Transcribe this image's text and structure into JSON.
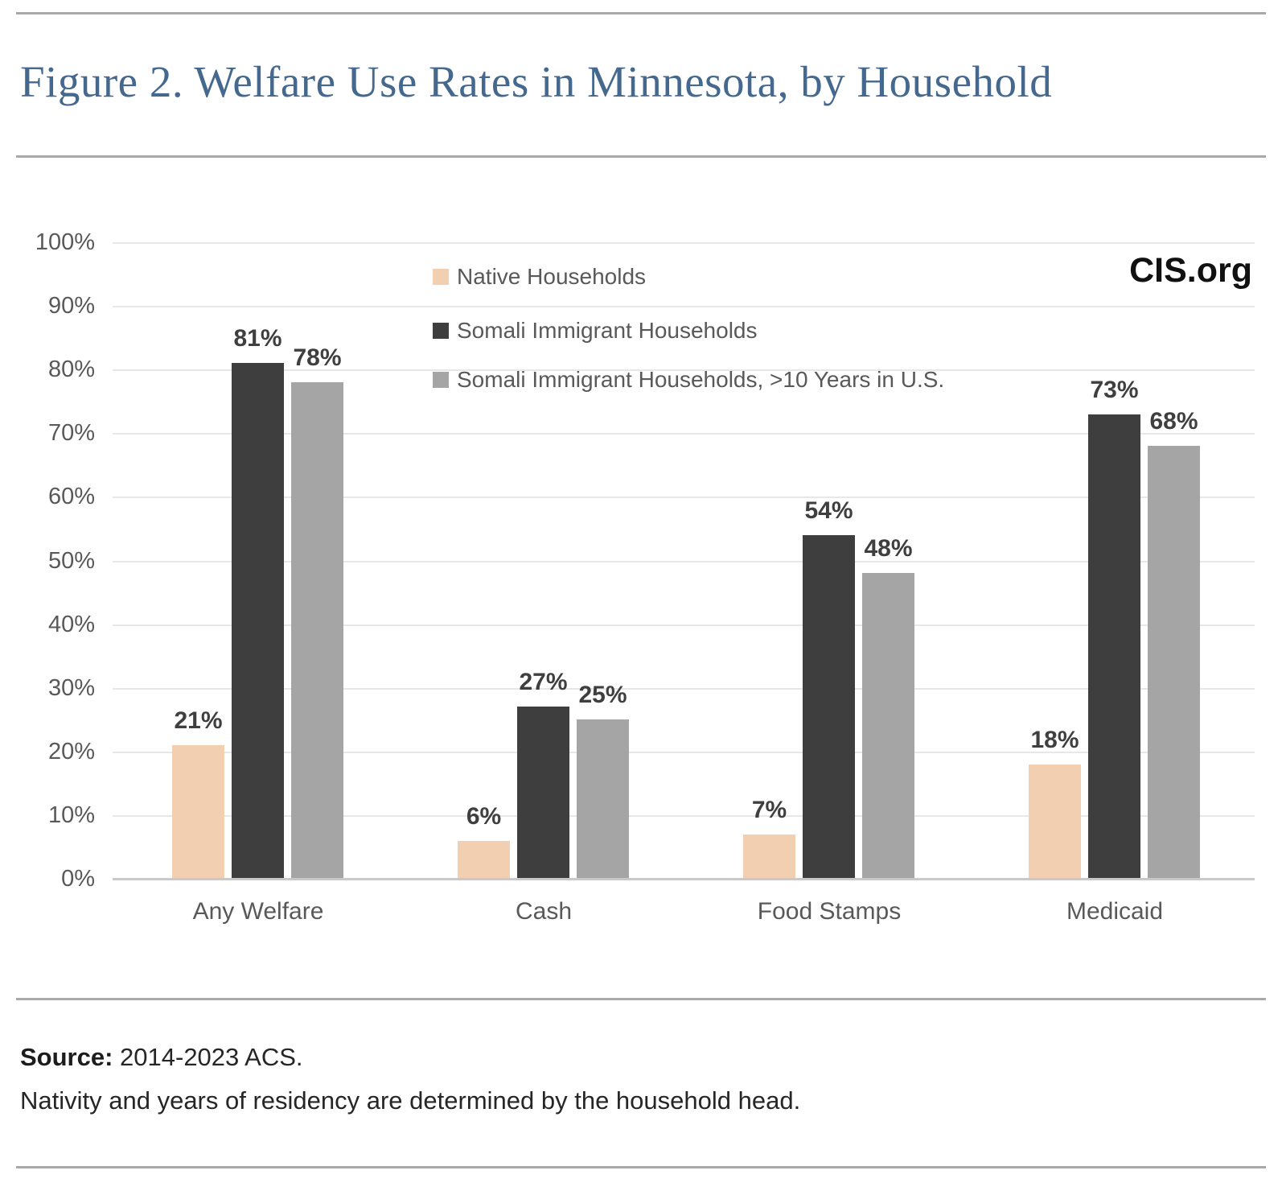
{
  "title": "Figure 2. Welfare Use Rates in Minnesota, by Household",
  "branding": "CIS.org",
  "source": {
    "label": "Source:",
    "text": " 2014-2023 ACS.",
    "note": "Nativity and years of residency are determined by the household head."
  },
  "colors": {
    "title": "#45688e",
    "axis_text": "#595959",
    "value_label": "#3f3f3f",
    "gridline": "#e7e7e7",
    "axis_line": "#c9c9c9",
    "divider": "#a9a9a9",
    "branding": "#111111"
  },
  "chart_data": {
    "type": "bar",
    "categories": [
      "Any Welfare",
      "Cash",
      "Food Stamps",
      "Medicaid"
    ],
    "series": [
      {
        "name": "Native Households",
        "color": "#f2cfb0",
        "values": [
          21,
          6,
          7,
          18
        ]
      },
      {
        "name": "Somali Immigrant Households",
        "color": "#3e3e3e",
        "values": [
          81,
          27,
          54,
          73
        ]
      },
      {
        "name": "Somali Immigrant Households, >10 Years in U.S.",
        "color": "#a5a5a5",
        "values": [
          78,
          25,
          48,
          68
        ]
      }
    ],
    "value_labels": [
      [
        "21%",
        "6%",
        "7%",
        "18%"
      ],
      [
        "81%",
        "27%",
        "54%",
        "73%"
      ],
      [
        "78%",
        "25%",
        "48%",
        "68%"
      ]
    ],
    "y_ticks": [
      "0%",
      "10%",
      "20%",
      "30%",
      "40%",
      "50%",
      "60%",
      "70%",
      "80%",
      "90%",
      "100%"
    ],
    "ylim": [
      0,
      100
    ],
    "grid": true,
    "legend_position": "top-center",
    "value_suffix": "%",
    "xlabel": "",
    "ylabel": ""
  }
}
